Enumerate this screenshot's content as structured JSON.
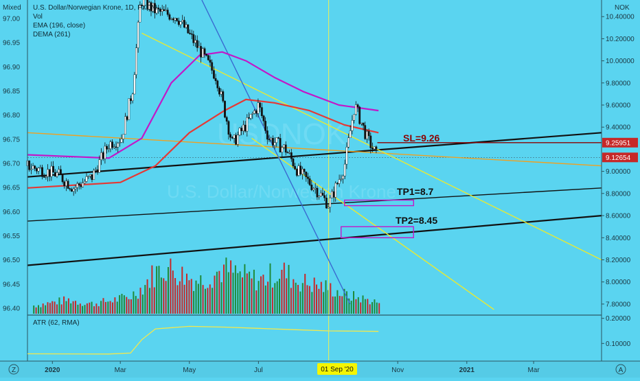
{
  "header": {
    "scale_mode": "Mixed",
    "currency": "NOK",
    "symbol_line": "U.S. Dollar/Norwegian Krone, 1D, FXCM",
    "indicators": [
      "Vol",
      "EMA (196, close)",
      "DEMA (261)"
    ],
    "watermark_symbol": "USDNOK",
    "watermark_name": "U.S. Dollar/Norwegian Krone"
  },
  "annotations": {
    "sl": "SL=9.26",
    "tp1": "TP1=8.7",
    "tp2": "TP2=8.45"
  },
  "price_tags": [
    {
      "text": "9.25951",
      "value": 9.25951,
      "color": "#c62828"
    },
    {
      "text": "9.12654",
      "value": 9.12654,
      "color": "#c62828"
    }
  ],
  "left_axis": {
    "ticks": [
      "97.00",
      "96.95",
      "96.90",
      "96.85",
      "96.80",
      "96.75",
      "96.70",
      "96.65",
      "96.60",
      "96.55",
      "96.50",
      "96.45",
      "96.40"
    ],
    "values": [
      97.0,
      96.95,
      96.9,
      96.85,
      96.8,
      96.75,
      96.7,
      96.65,
      96.6,
      96.55,
      96.5,
      96.45,
      96.4
    ]
  },
  "right_axis": {
    "ticks": [
      "10.40000",
      "10.20000",
      "10.00000",
      "9.80000",
      "9.60000",
      "9.40000",
      "9.00000",
      "8.80000",
      "8.60000",
      "8.40000",
      "8.20000",
      "8.00000",
      "7.80000"
    ],
    "values": [
      10.4,
      10.2,
      10.0,
      9.8,
      9.6,
      9.4,
      9.0,
      8.8,
      8.6,
      8.4,
      8.2,
      8.0,
      7.8
    ]
  },
  "time_axis": {
    "labels": [
      "2020",
      "Mar",
      "May",
      "Jul",
      "Nov",
      "2021",
      "Mar"
    ],
    "crosshair_label": "01 Sep '20",
    "left_button": "Z",
    "right_button": "A"
  },
  "atr_pane": {
    "title": "ATR (62, RMA)",
    "ticks": [
      "0.20000",
      "0.10000"
    ],
    "values": [
      0.2,
      0.1
    ]
  },
  "chart_data": {
    "type": "line",
    "title": "U.S. Dollar/Norwegian Krone, 1D, FXCM",
    "x_range": [
      "2019-12-10",
      "2021-04-30"
    ],
    "price_ylim": [
      7.7,
      10.55
    ],
    "price_series": {
      "name": "USDNOK",
      "x": [
        "2019-12-10",
        "2020-01-06",
        "2020-01-20",
        "2020-02-05",
        "2020-02-20",
        "2020-03-02",
        "2020-03-12",
        "2020-03-19",
        "2020-04-01",
        "2020-04-20",
        "2020-05-10",
        "2020-05-25",
        "2020-06-08",
        "2020-06-22",
        "2020-07-01",
        "2020-07-10",
        "2020-07-25",
        "2020-08-05",
        "2020-08-20",
        "2020-09-01",
        "2020-09-15",
        "2020-09-24",
        "2020-10-05",
        "2020-10-13"
      ],
      "y": [
        9.05,
        8.97,
        8.85,
        8.95,
        9.25,
        9.3,
        9.75,
        10.55,
        10.45,
        10.4,
        10.1,
        9.85,
        9.25,
        9.45,
        9.6,
        9.3,
        9.2,
        9.0,
        8.85,
        8.7,
        9.05,
        9.6,
        9.3,
        9.15
      ]
    },
    "series": [
      {
        "name": "EMA (196, close)",
        "color": "#e53935",
        "x": [
          "2019-12-10",
          "2020-03-01",
          "2020-04-01",
          "2020-05-01",
          "2020-06-01",
          "2020-06-20",
          "2020-07-15",
          "2020-08-15",
          "2020-09-15",
          "2020-10-15"
        ],
        "y": [
          8.85,
          8.9,
          9.05,
          9.35,
          9.55,
          9.65,
          9.62,
          9.55,
          9.42,
          9.35
        ]
      },
      {
        "name": "DEMA (261)",
        "color": "#c218c8",
        "x": [
          "2019-12-10",
          "2020-02-20",
          "2020-03-20",
          "2020-04-15",
          "2020-05-10",
          "2020-05-30",
          "2020-06-20",
          "2020-07-15",
          "2020-08-10",
          "2020-09-10",
          "2020-10-15"
        ],
        "y": [
          9.15,
          9.12,
          9.3,
          9.8,
          10.05,
          10.08,
          10.0,
          9.85,
          9.72,
          9.6,
          9.55
        ]
      }
    ],
    "trend_lines": [
      {
        "color": "#111111",
        "x": [
          "2019-12-10",
          "2021-04-30"
        ],
        "y": [
          8.95,
          9.35
        ]
      },
      {
        "color": "#111111",
        "x": [
          "2019-12-10",
          "2021-04-30"
        ],
        "y": [
          8.55,
          8.85
        ]
      },
      {
        "color": "#111111",
        "x": [
          "2019-12-10",
          "2021-04-30"
        ],
        "y": [
          8.15,
          8.6
        ]
      },
      {
        "color": "#f0a020",
        "x": [
          "2019-12-10",
          "2021-04-30"
        ],
        "y": [
          9.35,
          9.05
        ]
      },
      {
        "color": "#eaea30",
        "x": [
          "2020-03-20",
          "2021-04-30"
        ],
        "y": [
          10.25,
          8.2
        ]
      },
      {
        "color": "#eaea30",
        "x": [
          "2020-06-25",
          "2021-01-25"
        ],
        "y": [
          9.3,
          7.75
        ]
      },
      {
        "color": "#3a6ad0",
        "x": [
          "2020-05-12",
          "2020-09-20"
        ],
        "y": [
          10.55,
          7.8
        ]
      },
      {
        "color": "#8b0000",
        "x": [
          "2020-10-14",
          "2021-04-30"
        ],
        "y": [
          9.26,
          9.26
        ]
      }
    ],
    "target_zones": [
      {
        "label": "TP1=8.7",
        "x": [
          "2020-09-15",
          "2020-11-15"
        ],
        "y": [
          8.69,
          8.74
        ]
      },
      {
        "label": "TP2=8.45",
        "x": [
          "2020-09-12",
          "2020-11-15"
        ],
        "y": [
          8.4,
          8.5
        ]
      }
    ],
    "atr_series": {
      "name": "ATR (62, RMA)",
      "ylim": [
        0.03,
        0.21
      ],
      "x": [
        "2019-12-10",
        "2020-02-20",
        "2020-03-10",
        "2020-03-20",
        "2020-04-01",
        "2020-05-01",
        "2020-06-01",
        "2020-07-01",
        "2020-08-01",
        "2020-09-01",
        "2020-10-15"
      ],
      "y": [
        0.059,
        0.058,
        0.062,
        0.115,
        0.158,
        0.168,
        0.165,
        0.16,
        0.155,
        0.15,
        0.148
      ]
    },
    "volume": {
      "x_range": [
        "2019-12-15",
        "2020-10-15"
      ],
      "levels": [
        0.15,
        0.18,
        0.22,
        0.25,
        0.2,
        0.18,
        0.22,
        0.26,
        0.3,
        0.45,
        0.7,
        0.85,
        0.75,
        0.65,
        0.6,
        0.7,
        0.8,
        0.72,
        0.65,
        0.6,
        0.7,
        0.75,
        0.6,
        0.55,
        0.5,
        0.45,
        0.35,
        0.3,
        0.25,
        0.2
      ],
      "ylim": [
        0,
        1
      ]
    },
    "crosshair_x": "2020-09-01"
  }
}
